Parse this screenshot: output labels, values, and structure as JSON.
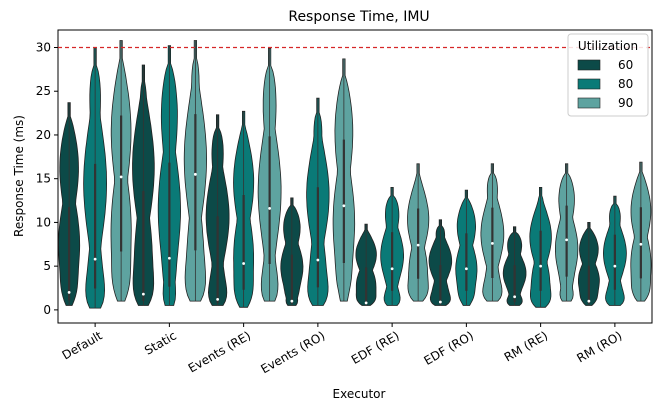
{
  "chart_data": {
    "type": "violin",
    "title": "Response Time, IMU",
    "xlabel": "Executor",
    "ylabel": "Response Time (ms)",
    "categories": [
      "Default",
      "Static",
      "Events (RE)",
      "Events (RO)",
      "EDF (RE)",
      "EDF (RO)",
      "RM (RE)",
      "RM (RO)"
    ],
    "ylim": [
      -1.5,
      32
    ],
    "yticks": [
      0,
      5,
      10,
      15,
      20,
      25,
      30
    ],
    "reference_line": {
      "y": 30,
      "color": "#d62728",
      "style": "dashed"
    },
    "legend": {
      "title": "Utilization",
      "position": "top-right"
    },
    "series": [
      {
        "name": "60",
        "color": "#0c4a48",
        "ranges": [
          [
            0.5,
            23.7
          ],
          [
            0.5,
            28.0
          ],
          [
            0.5,
            22.3
          ],
          [
            0.5,
            12.8
          ],
          [
            0.5,
            9.8
          ],
          [
            0.5,
            10.3
          ],
          [
            0.5,
            9.5
          ],
          [
            0.5,
            10.0
          ]
        ],
        "medians": [
          2.0,
          1.8,
          1.2,
          1.0,
          0.8,
          0.9,
          1.5,
          1.0
        ]
      },
      {
        "name": "80",
        "color": "#0a7a77",
        "ranges": [
          [
            0.2,
            30.0
          ],
          [
            0.5,
            30.2
          ],
          [
            0.3,
            22.7
          ],
          [
            0.5,
            24.2
          ],
          [
            0.5,
            14.0
          ],
          [
            0.5,
            13.7
          ],
          [
            0.3,
            14.0
          ],
          [
            0.5,
            13.0
          ]
        ],
        "medians": [
          5.8,
          5.9,
          5.3,
          5.7,
          4.7,
          4.7,
          5.0,
          5.0
        ]
      },
      {
        "name": "90",
        "color": "#5ea3a0",
        "ranges": [
          [
            1.0,
            30.8
          ],
          [
            1.0,
            30.8
          ],
          [
            1.0,
            29.9
          ],
          [
            1.0,
            28.7
          ],
          [
            1.0,
            16.7
          ],
          [
            1.0,
            16.7
          ],
          [
            1.0,
            16.7
          ],
          [
            1.0,
            16.9
          ]
        ],
        "medians": [
          15.2,
          15.5,
          11.6,
          11.9,
          7.4,
          7.6,
          8.0,
          7.5
        ]
      }
    ]
  }
}
